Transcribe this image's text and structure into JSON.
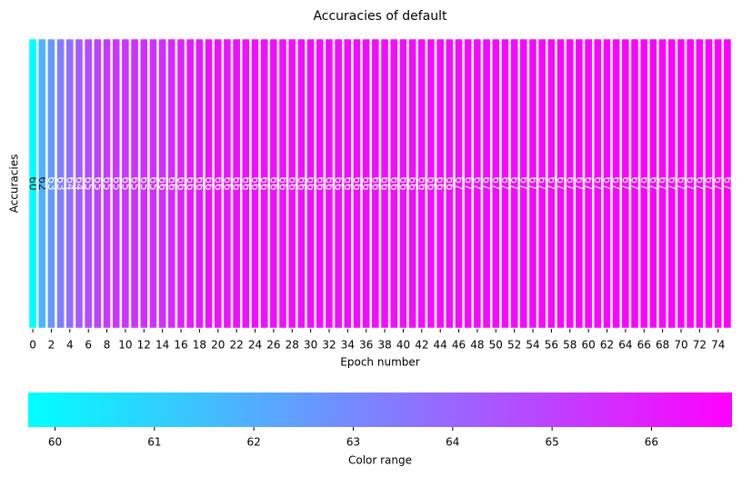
{
  "chart_data": {
    "type": "heatmap",
    "title": "Accuracies of  default",
    "x_label": "Epoch number",
    "y_label": "Accuracies",
    "colormap": "cool",
    "categories": [
      0,
      null,
      2,
      null,
      4,
      null,
      6,
      null,
      8,
      null,
      10,
      null,
      12,
      null,
      14,
      null,
      16,
      null,
      18,
      null,
      20,
      null,
      22,
      null,
      24,
      null,
      26,
      null,
      28,
      null,
      30,
      null,
      32,
      null,
      34,
      null,
      36,
      null,
      38,
      null,
      40,
      null,
      42,
      null,
      44,
      null,
      46,
      null,
      48,
      null,
      50,
      null,
      52,
      null,
      54,
      null,
      56,
      null,
      58,
      null,
      60,
      null,
      62,
      null,
      64,
      null,
      66,
      null,
      68,
      null,
      70,
      null,
      72,
      null,
      74,
      null
    ],
    "values": [
      59.73,
      61.8,
      62.6,
      63.3,
      63.8,
      64.3,
      64.7,
      65.0,
      65.2,
      65.3,
      65.35,
      65.4,
      65.45,
      65.48,
      65.55,
      65.7,
      65.9,
      66.05,
      66.2,
      66.3,
      66.32,
      66.34,
      66.35,
      66.36,
      66.37,
      66.38,
      66.39,
      66.4,
      66.4,
      66.41,
      66.42,
      66.42,
      66.43,
      66.43,
      66.44,
      66.44,
      66.45,
      66.45,
      66.46,
      66.46,
      66.47,
      66.47,
      66.48,
      66.48,
      66.49,
      66.49,
      66.5,
      66.51,
      66.52,
      66.53,
      66.54,
      66.55,
      66.56,
      66.57,
      66.58,
      66.59,
      66.6,
      66.61,
      66.62,
      66.63,
      66.64,
      66.65,
      66.66,
      66.67,
      66.68,
      66.69,
      66.7,
      66.71,
      66.72,
      66.73,
      66.74,
      66.75,
      66.76,
      66.77,
      66.79,
      66.81
    ],
    "value_labels": [
      "60",
      "62",
      "63",
      "63",
      "64",
      "64",
      "65",
      "65",
      "65",
      "65",
      "65",
      "65",
      "65",
      "65",
      "66",
      "66",
      "66",
      "66",
      "66",
      "66",
      "66",
      "66",
      "66",
      "66",
      "66",
      "66",
      "66",
      "66",
      "66",
      "66",
      "66",
      "66",
      "66",
      "66",
      "66",
      "66",
      "66",
      "66",
      "66",
      "66",
      "66",
      "66",
      "66",
      "66",
      "66",
      "66",
      "67",
      "67",
      "67",
      "67",
      "67",
      "67",
      "67",
      "67",
      "67",
      "67",
      "67",
      "67",
      "67",
      "67",
      "67",
      "67",
      "67",
      "67",
      "67",
      "67",
      "67",
      "67",
      "67",
      "67",
      "67",
      "67",
      "67",
      "67",
      "67",
      "67"
    ],
    "colorbar": {
      "label": "Color range",
      "clim": [
        59.73,
        66.81
      ],
      "ticks": [
        60,
        61,
        62,
        63,
        64,
        65,
        66
      ]
    }
  }
}
